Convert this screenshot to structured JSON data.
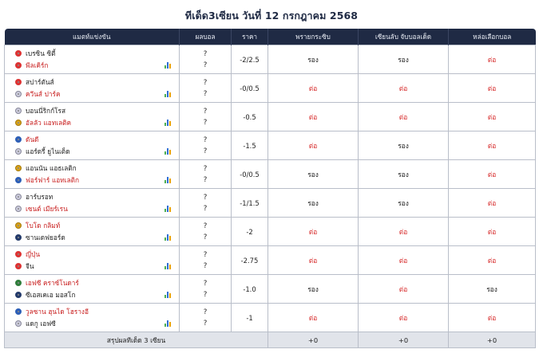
{
  "page_title": "ทีเด็ด3เซียน วันที่ 12 กรกฎาคม 2568",
  "headers": {
    "match": "แมตท์แข่งขัน",
    "score": "ผลบอล",
    "price": "ราคา",
    "tipster1": "พรายกระซิบ",
    "tipster2": "เซียนลับ จับบอลเด็ด",
    "tipster3": "หล่อเลือกบอล"
  },
  "matches": [
    {
      "home": "เบรซิน ซิตี้",
      "away": "พีลเคิร์ก",
      "fav": "away",
      "score_home": "?",
      "score_away": "?",
      "price": "-2/2.5",
      "t1": "รอง",
      "t2": "รอง",
      "t3": "ต่อ",
      "home_icon": "club-badge-icon",
      "away_icon": "club-badge-icon"
    },
    {
      "home": "สปาร์ตันส์",
      "away": "ควีนส์ ปาร์ค",
      "fav": "away",
      "score_home": "?",
      "score_away": "?",
      "price": "-0/0.5",
      "t1": "ต่อ",
      "t2": "ต่อ",
      "t3": "ต่อ",
      "home_icon": "club-badge-icon",
      "away_icon": "club-badge-icon"
    },
    {
      "home": "บอนนี่ริกก์โรส",
      "away": "อัลลัว แอทเลติค",
      "fav": "away",
      "score_home": "?",
      "score_away": "?",
      "price": "-0.5",
      "t1": "ต่อ",
      "t2": "ต่อ",
      "t3": "ต่อ",
      "home_icon": "club-badge-icon",
      "away_icon": "club-badge-icon"
    },
    {
      "home": "ดันดี",
      "away": "แอร์ดรี้ ยูไนเต็ด",
      "fav": "home",
      "score_home": "?",
      "score_away": "?",
      "price": "-1.5",
      "t1": "ต่อ",
      "t2": "รอง",
      "t3": "ต่อ",
      "home_icon": "club-badge-icon",
      "away_icon": "club-badge-icon"
    },
    {
      "home": "แอนนัน แอธเลติก",
      "away": "ฟอร์ฟาร์ แอทเลติก",
      "fav": "away",
      "score_home": "?",
      "score_away": "?",
      "price": "-0/0.5",
      "t1": "รอง",
      "t2": "รอง",
      "t3": "ต่อ",
      "home_icon": "club-badge-icon",
      "away_icon": "club-badge-icon"
    },
    {
      "home": "อาร์บรอท",
      "away": "เซนต์ เมียร์เรน",
      "fav": "away",
      "score_home": "?",
      "score_away": "?",
      "price": "-1/1.5",
      "t1": "รอง",
      "t2": "รอง",
      "t3": "ต่อ",
      "home_icon": "club-badge-icon",
      "away_icon": "club-badge-icon"
    },
    {
      "home": "โบโด กลิมท์",
      "away": "ซานเดฟยอร์ด",
      "fav": "home",
      "score_home": "?",
      "score_away": "?",
      "price": "-2",
      "t1": "ต่อ",
      "t2": "ต่อ",
      "t3": "ต่อ",
      "home_icon": "club-badge-icon",
      "away_icon": "club-badge-icon"
    },
    {
      "home": "ญี่ปุ่น",
      "away": "จีน",
      "fav": "home",
      "score_home": "?",
      "score_away": "?",
      "price": "-2.75",
      "t1": "ต่อ",
      "t2": "ต่อ",
      "t3": "ต่อ",
      "home_icon": "japan-flag-icon",
      "away_icon": "china-flag-icon"
    },
    {
      "home": "เอฟซี คราซ์โนดาร์",
      "away": "ซีเอสเคเอ มอสโก",
      "fav": "home",
      "score_home": "?",
      "score_away": "?",
      "price": "-1.0",
      "t1": "รอง",
      "t2": "ต่อ",
      "t3": "รอง",
      "home_icon": "club-badge-icon",
      "away_icon": "club-badge-icon"
    },
    {
      "home": "วูลซาน ฮุนได โฮรางอี",
      "away": "แดกู เอฟซี",
      "fav": "home",
      "score_home": "?",
      "score_away": "?",
      "price": "-1",
      "t1": "ต่อ",
      "t2": "ต่อ",
      "t3": "ต่อ",
      "home_icon": "club-badge-icon",
      "away_icon": "club-badge-icon"
    }
  ],
  "summary": {
    "label": "สรุปผลทีเด็ด 3 เซียน",
    "t1": "+0",
    "t2": "+0",
    "t3": "+0"
  },
  "colors": {
    "header_bg": "#1f2a44",
    "favourite_team": "#c81e1e",
    "pick_tor": "#d62828",
    "summary_bg": "#e1e4ea"
  },
  "stats_icon": "stats-bar-chart-icon"
}
